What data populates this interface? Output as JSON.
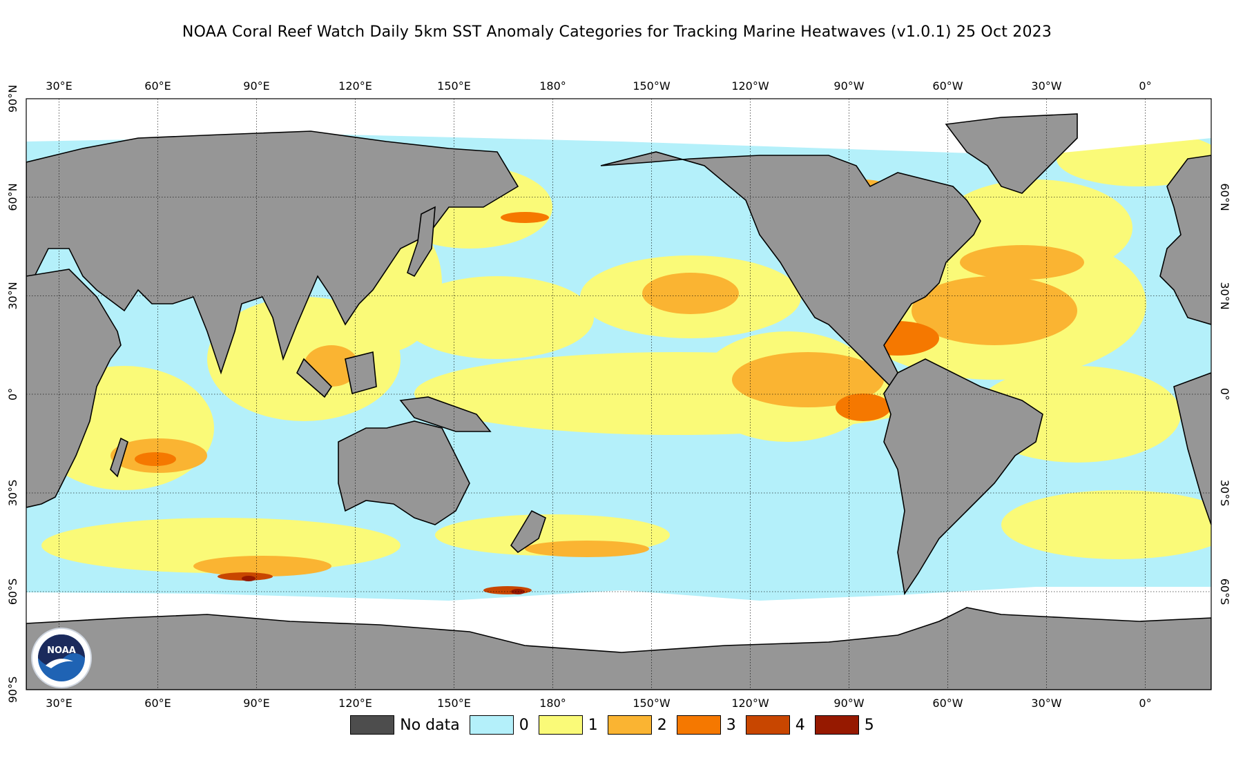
{
  "title": "NOAA Coral Reef Watch Daily 5km SST Anomaly Categories for Tracking Marine Heatwaves  (v1.0.1)   25 Oct 2023",
  "map": {
    "lon_labels": [
      "30°E",
      "60°E",
      "90°E",
      "120°E",
      "150°E",
      "180°",
      "150°W",
      "120°W",
      "90°W",
      "60°W",
      "30°W",
      "0°"
    ],
    "lat_labels_left": [
      "90°N",
      "60°N",
      "30°N",
      "0°",
      "30°S",
      "60°S",
      "90°S"
    ],
    "lat_labels_right": [
      "60°N",
      "30°N",
      "0°",
      "30°S",
      "60°S"
    ],
    "colors": {
      "ocean": "#b4f0fa",
      "land": "#969696",
      "ice": "#ffffff",
      "cat1": "#fafa78",
      "cat2": "#fab432",
      "cat3": "#f57800",
      "cat4": "#c84600",
      "cat5": "#961900"
    }
  },
  "legend": [
    {
      "label": "No data",
      "color": "#4d4d4d"
    },
    {
      "label": "0",
      "color": "#b4f0fa"
    },
    {
      "label": "1",
      "color": "#fafa78"
    },
    {
      "label": "2",
      "color": "#fab432"
    },
    {
      "label": "3",
      "color": "#f57800"
    },
    {
      "label": "4",
      "color": "#c84600"
    },
    {
      "label": "5",
      "color": "#961900"
    }
  ],
  "logo": {
    "text": "NOAA"
  }
}
